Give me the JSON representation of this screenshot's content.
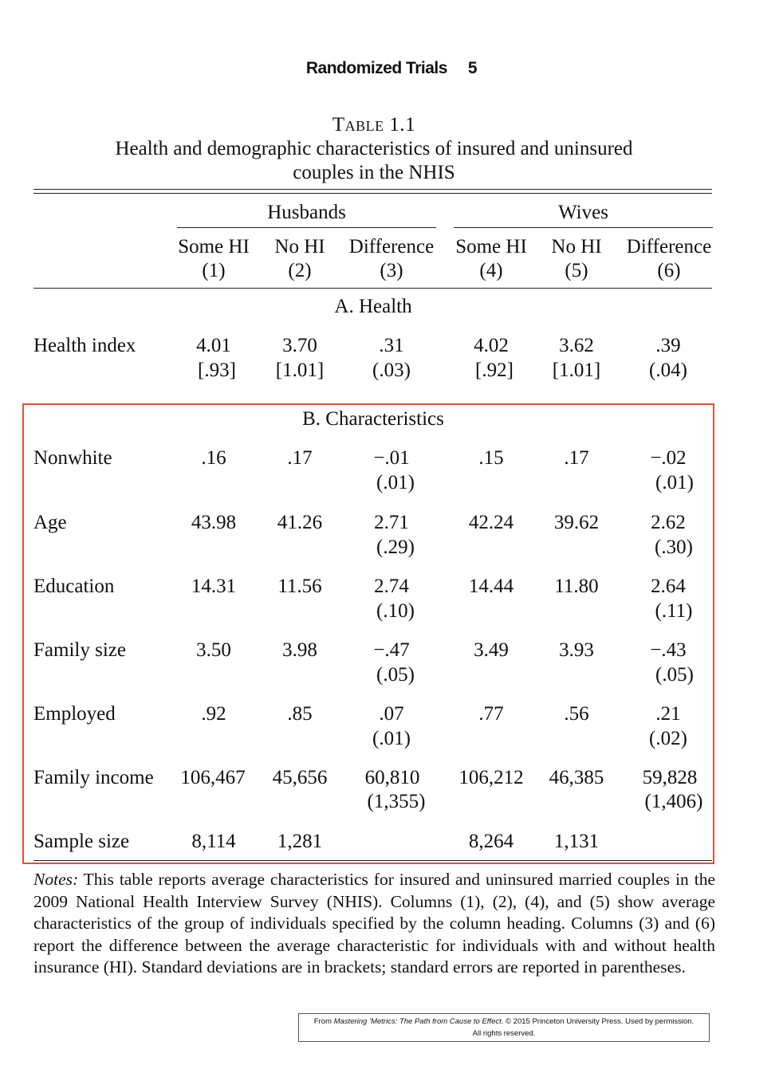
{
  "header": {
    "title": "Randomized Trials",
    "page": "5"
  },
  "table": {
    "number": "Table 1.1",
    "title_line1": "Health and demographic characteristics of insured and uninsured",
    "title_line2": "couples in the NHIS",
    "groups": [
      "Husbands",
      "Wives"
    ],
    "columns": [
      {
        "name": "Some HI",
        "num": "(1)"
      },
      {
        "name": "No HI",
        "num": "(2)"
      },
      {
        "name": "Difference",
        "num": "(3)"
      },
      {
        "name": "Some HI",
        "num": "(4)"
      },
      {
        "name": "No HI",
        "num": "(5)"
      },
      {
        "name": "Difference",
        "num": "(6)"
      }
    ],
    "panel_a": "A. Health",
    "panel_b": "B. Characteristics",
    "rows": [
      {
        "label": "Health index",
        "values": [
          "4.01",
          "3.70",
          ".31",
          "4.02",
          "3.62",
          ".39"
        ],
        "sub": [
          "[.93]",
          "[1.01]",
          "(.03)",
          "[.92]",
          "[1.01]",
          "(.04)"
        ]
      },
      {
        "label": "Nonwhite",
        "values": [
          ".16",
          ".17",
          "−.01",
          ".15",
          ".17",
          "−.02"
        ],
        "sub": [
          "",
          "",
          "(.01)",
          "",
          "",
          "(.01)"
        ]
      },
      {
        "label": "Age",
        "values": [
          "43.98",
          "41.26",
          "2.71",
          "42.24",
          "39.62",
          "2.62"
        ],
        "sub": [
          "",
          "",
          "(.29)",
          "",
          "",
          "(.30)"
        ]
      },
      {
        "label": "Education",
        "values": [
          "14.31",
          "11.56",
          "2.74",
          "14.44",
          "11.80",
          "2.64"
        ],
        "sub": [
          "",
          "",
          "(.10)",
          "",
          "",
          "(.11)"
        ]
      },
      {
        "label": "Family size",
        "values": [
          "3.50",
          "3.98",
          "−.47",
          "3.49",
          "3.93",
          "−.43"
        ],
        "sub": [
          "",
          "",
          "(.05)",
          "",
          "",
          "(.05)"
        ]
      },
      {
        "label": "Employed",
        "values": [
          ".92",
          ".85",
          ".07",
          ".77",
          ".56",
          ".21"
        ],
        "sub": [
          "",
          "",
          "(.01)",
          "",
          "",
          "(.02)"
        ]
      },
      {
        "label": "Family income",
        "values": [
          "106,467",
          "45,656",
          "60,810",
          "106,212",
          "46,385",
          "59,828"
        ],
        "sub": [
          "",
          "",
          "(1,355)",
          "",
          "",
          "(1,406)"
        ]
      },
      {
        "label": "Sample size",
        "values": [
          "8,114",
          "1,281",
          "",
          "8,264",
          "1,131",
          ""
        ],
        "sub": [
          "",
          "",
          "",
          "",
          "",
          ""
        ]
      }
    ]
  },
  "notes": {
    "lead": "Notes:",
    "text": " This table reports average characteristics for insured and uninsured married couples in the 2009 National Health Interview Survey (NHIS). Columns (1), (2), (4), and (5) show average characteristics of the group of individuals specified by the column heading. Columns (3) and (6) report the difference between the average characteristic for individuals with and without health insurance (HI). Standard deviations are in brackets; standard errors are reported in parentheses."
  },
  "credit": {
    "prefix": "From ",
    "book": "Mastering ’Metrics: The Path from Cause to Effect",
    "suffix": ". © 2015 Princeton University Press. Used by permission.",
    "line2": "All rights reserved."
  }
}
